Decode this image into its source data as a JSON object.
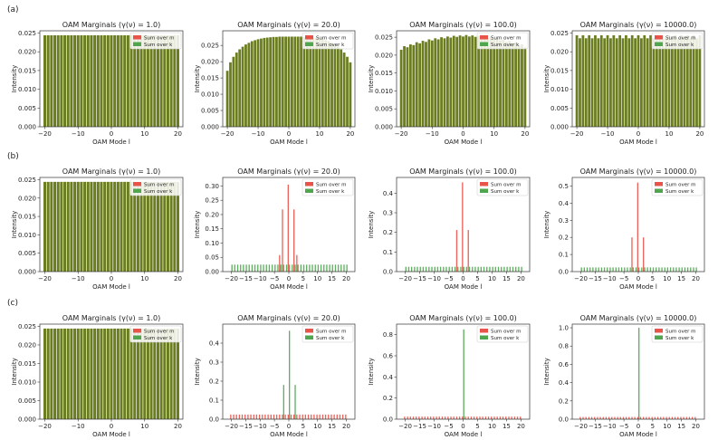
{
  "row_labels": [
    "(a)",
    "(b)",
    "(c)"
  ],
  "legend_labels": [
    "Sum over m",
    "Sum over k"
  ],
  "colors": {
    "m": "#e8534a",
    "k": "#4fa64f",
    "overlap": "#6b7e1f",
    "axis": "#333333"
  },
  "chart_data": [
    {
      "type": "bar",
      "row": 0,
      "col": 0,
      "title": "OAM Marginals (γ(ν) = 1.0)",
      "xlabel": "OAM Mode l",
      "ylabel": "Intensity",
      "xlim": [
        -21.5,
        21.5
      ],
      "ylim": [
        0,
        0.0256
      ],
      "xticks": [
        -20,
        -10,
        0,
        10,
        20
      ],
      "yticks": [
        0,
        0.005,
        0.01,
        0.015,
        0.02,
        0.025
      ],
      "ytick_labels": [
        "0.000",
        "0.005",
        "0.010",
        "0.015",
        "0.020",
        "0.025"
      ],
      "overlay": "overlap",
      "series": [
        {
          "name": "Sum over m",
          "base": 0.0244,
          "amp": 0,
          "peaks": {}
        },
        {
          "name": "Sum over k",
          "base": 0.0244,
          "amp": 0,
          "peaks": {}
        }
      ]
    },
    {
      "type": "bar",
      "row": 0,
      "col": 1,
      "title": "OAM Marginals (γ(ν) = 20.0)",
      "xlabel": "OAM Mode l",
      "ylabel": "Intensity",
      "xlim": [
        -21.5,
        21.5
      ],
      "ylim": [
        0,
        0.0295
      ],
      "xticks": [
        -20,
        -10,
        0,
        10,
        20
      ],
      "yticks": [
        0,
        0.005,
        0.01,
        0.015,
        0.02,
        0.025
      ],
      "ytick_labels": [
        "0.000",
        "0.005",
        "0.010",
        "0.015",
        "0.020",
        "0.025"
      ],
      "overlay": "overlap",
      "series": [
        {
          "name": "Sum over m",
          "curve": [
            0.0172,
            0.0198,
            0.0215,
            0.0228,
            0.0238,
            0.0246,
            0.0253,
            0.0258,
            0.0263,
            0.0266,
            0.0269,
            0.0271,
            0.0273,
            0.0274,
            0.0275,
            0.0276,
            0.0276,
            0.0277,
            0.0277,
            0.0277,
            0.0277,
            0.0277,
            0.0277,
            0.0277,
            0.0277,
            0.0276,
            0.0276,
            0.0275,
            0.0274,
            0.0273,
            0.0271,
            0.0269,
            0.0266,
            0.0263,
            0.0258,
            0.0253,
            0.0246,
            0.0238,
            0.0228,
            0.0215,
            0.0198
          ]
        },
        {
          "name": "Sum over k",
          "curve": [
            0.0172,
            0.0198,
            0.0215,
            0.0228,
            0.0238,
            0.0246,
            0.0253,
            0.0258,
            0.0263,
            0.0266,
            0.0269,
            0.0271,
            0.0273,
            0.0274,
            0.0275,
            0.0276,
            0.0276,
            0.0277,
            0.0277,
            0.0277,
            0.0277,
            0.0277,
            0.0277,
            0.0277,
            0.0277,
            0.0276,
            0.0276,
            0.0275,
            0.0274,
            0.0273,
            0.0271,
            0.0269,
            0.0266,
            0.0263,
            0.0258,
            0.0253,
            0.0246,
            0.0238,
            0.0228,
            0.0215,
            0.0198
          ]
        }
      ]
    },
    {
      "type": "bar",
      "row": 0,
      "col": 2,
      "title": "OAM Marginals (γ(ν) = 100.0)",
      "xlabel": "OAM Mode l",
      "ylabel": "Intensity",
      "xlim": [
        -21.5,
        21.5
      ],
      "ylim": [
        0,
        0.0268
      ],
      "xticks": [
        -20,
        -10,
        0,
        10,
        20
      ],
      "yticks": [
        0,
        0.005,
        0.01,
        0.015,
        0.02,
        0.025
      ],
      "ytick_labels": [
        "0.000",
        "0.005",
        "0.010",
        "0.015",
        "0.020",
        "0.025"
      ],
      "overlay": "overlap",
      "series": [
        {
          "name": "Sum over m",
          "curve": [
            0.0215,
            0.0225,
            0.0222,
            0.023,
            0.0228,
            0.0236,
            0.0233,
            0.024,
            0.0237,
            0.0244,
            0.0241,
            0.0247,
            0.0244,
            0.025,
            0.0247,
            0.0252,
            0.0249,
            0.0254,
            0.0251,
            0.0255,
            0.0252,
            0.0256,
            0.0252,
            0.0255,
            0.0251,
            0.0254,
            0.0249,
            0.0252,
            0.0247,
            0.025,
            0.0244,
            0.0247,
            0.0241,
            0.0244,
            0.0237,
            0.024,
            0.0233,
            0.0236,
            0.0228,
            0.023,
            0.0222
          ]
        },
        {
          "name": "Sum over k",
          "curve": [
            0.0215,
            0.0225,
            0.0222,
            0.023,
            0.0228,
            0.0236,
            0.0233,
            0.024,
            0.0237,
            0.0244,
            0.0241,
            0.0247,
            0.0244,
            0.025,
            0.0247,
            0.0252,
            0.0249,
            0.0254,
            0.0251,
            0.0255,
            0.0252,
            0.0256,
            0.0252,
            0.0255,
            0.0251,
            0.0254,
            0.0249,
            0.0252,
            0.0247,
            0.025,
            0.0244,
            0.0247,
            0.0241,
            0.0244,
            0.0237,
            0.024,
            0.0233,
            0.0236,
            0.0228,
            0.023,
            0.0222
          ]
        }
      ]
    },
    {
      "type": "bar",
      "row": 0,
      "col": 3,
      "title": "OAM Marginals (γ(ν) = 10000.0)",
      "xlabel": "OAM Mode l",
      "ylabel": "Intensity",
      "xlim": [
        -21.5,
        21.5
      ],
      "ylim": [
        0,
        0.0256
      ],
      "xticks": [
        -20,
        -10,
        0,
        10,
        20
      ],
      "yticks": [
        0,
        0.005,
        0.01,
        0.015,
        0.02,
        0.025
      ],
      "ytick_labels": [
        "0.000",
        "0.005",
        "0.010",
        "0.015",
        "0.020",
        "0.025"
      ],
      "overlay": "overlap",
      "series": [
        {
          "name": "Sum over m",
          "curve": [
            0.0244,
            0.0236,
            0.0244,
            0.0236,
            0.0244,
            0.0236,
            0.0244,
            0.0236,
            0.0244,
            0.0236,
            0.0244,
            0.0236,
            0.0244,
            0.0236,
            0.0244,
            0.0236,
            0.0244,
            0.0236,
            0.0244,
            0.0236,
            0.0244,
            0.0236,
            0.0244,
            0.0236,
            0.0244,
            0.0236,
            0.0244,
            0.0236,
            0.0244,
            0.0236,
            0.0244,
            0.0236,
            0.0244,
            0.0236,
            0.0244,
            0.0236,
            0.0244,
            0.0236,
            0.0244,
            0.0236,
            0.0244
          ]
        },
        {
          "name": "Sum over k",
          "curve": [
            0.0244,
            0.0236,
            0.0244,
            0.0236,
            0.0244,
            0.0236,
            0.0244,
            0.0236,
            0.0244,
            0.0236,
            0.0244,
            0.0236,
            0.0244,
            0.0236,
            0.0244,
            0.0236,
            0.0244,
            0.0236,
            0.0244,
            0.0236,
            0.0244,
            0.0236,
            0.0244,
            0.0236,
            0.0244,
            0.0236,
            0.0244,
            0.0236,
            0.0244,
            0.0236,
            0.0244,
            0.0236,
            0.0244,
            0.0236,
            0.0244,
            0.0236,
            0.0244,
            0.0236,
            0.0244,
            0.0236,
            0.0244
          ]
        }
      ]
    },
    {
      "type": "bar",
      "row": 1,
      "col": 0,
      "title": "OAM Marginals (γ(ν) = 1.0)",
      "xlabel": "OAM Mode l",
      "ylabel": "Intensity",
      "xlim": [
        -21.5,
        21.5
      ],
      "ylim": [
        0,
        0.0256
      ],
      "xticks": [
        -20,
        -10,
        0,
        10,
        20
      ],
      "yticks": [
        0,
        0.005,
        0.01,
        0.015,
        0.02,
        0.025
      ],
      "ytick_labels": [
        "0.000",
        "0.005",
        "0.010",
        "0.015",
        "0.020",
        "0.025"
      ],
      "overlay": "overlap",
      "series": [
        {
          "name": "Sum over m",
          "base": 0.0244,
          "amp": 0,
          "peaks": {}
        },
        {
          "name": "Sum over k",
          "base": 0.0244,
          "amp": 0,
          "peaks": {}
        }
      ]
    },
    {
      "type": "bar",
      "row": 1,
      "col": 1,
      "title": "OAM Marginals (γ(ν) = 20.0)",
      "xlabel": "OAM Mode l",
      "ylabel": "Intensity",
      "xlim": [
        -23,
        23
      ],
      "ylim": [
        0,
        0.33
      ],
      "xticks": [
        -20,
        -15,
        -10,
        -5,
        0,
        5,
        10,
        15,
        20
      ],
      "xtick_labels": [
        "−20",
        "−15",
        "−10",
        "−5",
        "0",
        "5",
        "10",
        "15",
        "20"
      ],
      "yticks": [
        0,
        0.05,
        0.1,
        0.15,
        0.2,
        0.25,
        0.3
      ],
      "ytick_labels": [
        "0.00",
        "0.05",
        "0.10",
        "0.15",
        "0.20",
        "0.25",
        "0.30"
      ],
      "overlay": "sidebyside",
      "series": [
        {
          "name": "Sum over m",
          "base": 0.001,
          "amp": 0,
          "peaks": {
            "-3": 0.058,
            "-2": 0.218,
            "0": 0.305,
            "2": 0.218,
            "3": 0.058
          }
        },
        {
          "name": "Sum over k",
          "base": 0.0244,
          "amp": 0,
          "peaks": {}
        }
      ]
    },
    {
      "type": "bar",
      "row": 1,
      "col": 2,
      "title": "OAM Marginals (γ(ν) = 100.0)",
      "xlabel": "OAM Mode l",
      "ylabel": "Intensity",
      "xlim": [
        -23,
        23
      ],
      "ylim": [
        0,
        0.48
      ],
      "xticks": [
        -20,
        -15,
        -10,
        -5,
        0,
        5,
        10,
        15,
        20
      ],
      "xtick_labels": [
        "−20",
        "−15",
        "−10",
        "−5",
        "0",
        "5",
        "10",
        "15",
        "20"
      ],
      "yticks": [
        0,
        0.1,
        0.2,
        0.3,
        0.4
      ],
      "ytick_labels": [
        "0.0",
        "0.1",
        "0.2",
        "0.3",
        "0.4"
      ],
      "overlay": "sidebyside",
      "series": [
        {
          "name": "Sum over m",
          "base": 0.001,
          "amp": 0,
          "peaks": {
            "-2": 0.212,
            "0": 0.455,
            "2": 0.212
          }
        },
        {
          "name": "Sum over k",
          "base": 0.0244,
          "amp": 0,
          "peaks": {}
        }
      ]
    },
    {
      "type": "bar",
      "row": 1,
      "col": 3,
      "title": "OAM Marginals (γ(ν) = 10000.0)",
      "xlabel": "OAM Mode l",
      "ylabel": "Intensity",
      "xlim": [
        -23,
        23
      ],
      "ylim": [
        0,
        0.55
      ],
      "xticks": [
        -20,
        -15,
        -10,
        -5,
        0,
        5,
        10,
        15,
        20
      ],
      "xtick_labels": [
        "−20",
        "−15",
        "−10",
        "−5",
        "0",
        "5",
        "10",
        "15",
        "20"
      ],
      "yticks": [
        0,
        0.1,
        0.2,
        0.3,
        0.4,
        0.5
      ],
      "ytick_labels": [
        "0.0",
        "0.1",
        "0.2",
        "0.3",
        "0.4",
        "0.5"
      ],
      "overlay": "sidebyside",
      "series": [
        {
          "name": "Sum over m",
          "base": 0.001,
          "amp": 0,
          "peaks": {
            "-2": 0.2,
            "0": 0.52,
            "2": 0.2
          }
        },
        {
          "name": "Sum over k",
          "base": 0.0244,
          "amp": 0,
          "peaks": {}
        }
      ]
    },
    {
      "type": "bar",
      "row": 2,
      "col": 0,
      "title": "OAM Marginals (γ(ν) = 1.0)",
      "xlabel": "OAM Mode l",
      "ylabel": "Intensity",
      "xlim": [
        -21.5,
        21.5
      ],
      "ylim": [
        0,
        0.0256
      ],
      "xticks": [
        -20,
        -10,
        0,
        10,
        20
      ],
      "yticks": [
        0,
        0.005,
        0.01,
        0.015,
        0.02,
        0.025
      ],
      "ytick_labels": [
        "0.000",
        "0.005",
        "0.010",
        "0.015",
        "0.020",
        "0.025"
      ],
      "overlay": "overlap",
      "series": [
        {
          "name": "Sum over m",
          "base": 0.0244,
          "amp": 0,
          "peaks": {}
        },
        {
          "name": "Sum over k",
          "base": 0.0244,
          "amp": 0,
          "peaks": {}
        }
      ]
    },
    {
      "type": "bar",
      "row": 2,
      "col": 1,
      "title": "OAM Marginals (γ(ν) = 20.0)",
      "xlabel": "OAM Mode l",
      "ylabel": "Intensity",
      "xlim": [
        -23,
        23
      ],
      "ylim": [
        0,
        0.5
      ],
      "xticks": [
        -20,
        -15,
        -10,
        -5,
        0,
        5,
        10,
        15,
        20
      ],
      "xtick_labels": [
        "−20",
        "−15",
        "−10",
        "−5",
        "0",
        "5",
        "10",
        "15",
        "20"
      ],
      "yticks": [
        0,
        0.1,
        0.2,
        0.3,
        0.4
      ],
      "ytick_labels": [
        "0.0",
        "0.1",
        "0.2",
        "0.3",
        "0.4"
      ],
      "overlay": "sidebyside",
      "series": [
        {
          "name": "Sum over m",
          "base": 0.0244,
          "amp": 0,
          "peaks": {}
        },
        {
          "name": "Sum over k",
          "base": 0.001,
          "amp": 0,
          "peaks": {
            "-2": 0.18,
            "0": 0.465,
            "2": 0.18
          }
        }
      ]
    },
    {
      "type": "bar",
      "row": 2,
      "col": 2,
      "title": "OAM Marginals (γ(ν) = 100.0)",
      "xlabel": "OAM Mode l",
      "ylabel": "Intensity",
      "xlim": [
        -23,
        23
      ],
      "ylim": [
        0,
        0.9
      ],
      "xticks": [
        -20,
        -15,
        -10,
        -5,
        0,
        5,
        10,
        15,
        20
      ],
      "xtick_labels": [
        "−20",
        "−15",
        "−10",
        "−5",
        "0",
        "5",
        "10",
        "15",
        "20"
      ],
      "yticks": [
        0,
        0.2,
        0.4,
        0.6,
        0.8
      ],
      "ytick_labels": [
        "0.0",
        "0.2",
        "0.4",
        "0.6",
        "0.8"
      ],
      "overlay": "sidebyside",
      "series": [
        {
          "name": "Sum over m",
          "base": 0.0244,
          "amp": 0,
          "peaks": {}
        },
        {
          "name": "Sum over k",
          "base": 0.001,
          "amp": 0,
          "peaks": {
            "0": 0.85
          }
        }
      ]
    },
    {
      "type": "bar",
      "row": 2,
      "col": 3,
      "title": "OAM Marginals (γ(ν) = 10000.0)",
      "xlabel": "OAM Mode l",
      "ylabel": "Intensity",
      "xlim": [
        -23,
        23
      ],
      "ylim": [
        0,
        1.04
      ],
      "xticks": [
        -20,
        -15,
        -10,
        -5,
        0,
        5,
        10,
        15,
        20
      ],
      "xtick_labels": [
        "−20",
        "−15",
        "−10",
        "−5",
        "0",
        "5",
        "10",
        "15",
        "20"
      ],
      "yticks": [
        0,
        0.2,
        0.4,
        0.6,
        0.8,
        1.0
      ],
      "ytick_labels": [
        "0.0",
        "0.2",
        "0.4",
        "0.6",
        "0.8",
        "1.0"
      ],
      "overlay": "sidebyside",
      "series": [
        {
          "name": "Sum over m",
          "base": 0.0244,
          "amp": 0,
          "peaks": {}
        },
        {
          "name": "Sum over k",
          "base": 0.001,
          "amp": 0,
          "peaks": {
            "0": 1.0
          }
        }
      ]
    }
  ]
}
